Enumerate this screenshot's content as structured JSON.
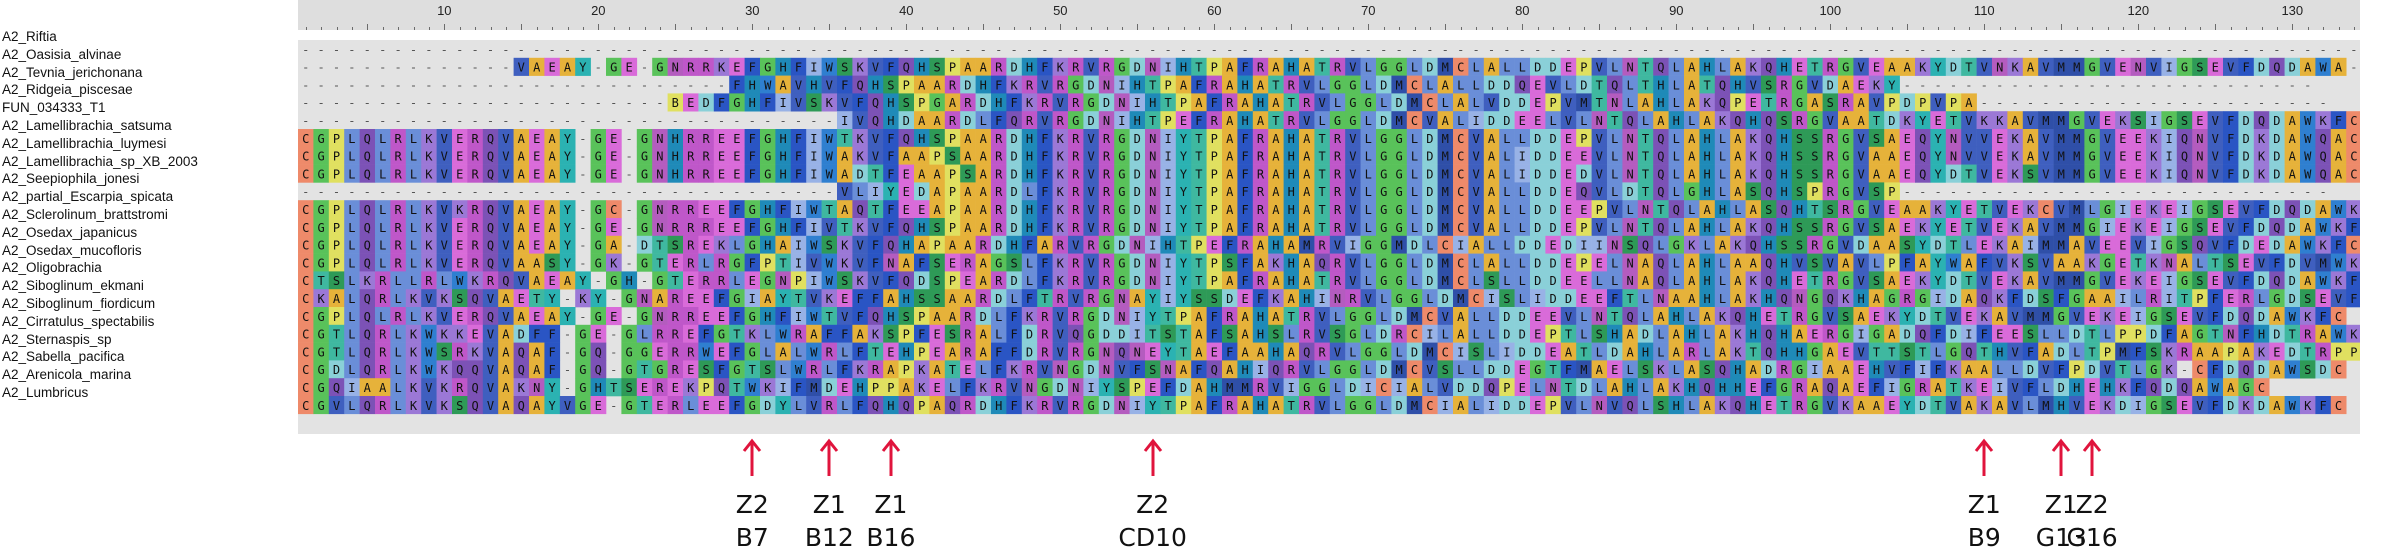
{
  "ruler": {
    "ticks": [
      10,
      20,
      30,
      40,
      50,
      60,
      70,
      80,
      90,
      100,
      110,
      120,
      130
    ]
  },
  "sequences": [
    {
      "name": "A2_Riftia",
      "seq": "--------------------------------------------------------------------------------------------------------------------------------------------"
    },
    {
      "name": "A2_Oasisia_alvinae",
      "seq": "--------------VAEAY-GE-GNRRKEFGHFIWSKVFQHSPAARDHFKRVRGDNIHTPAFRAHATRVLGGLDMCLALLDDEPVLNTQLAHLAKQHETRGVEAAKYDTVNKAVMMGVENVIGSEVFDQDAWA-"
    },
    {
      "name": "A2_Tevnia_jerichonana",
      "seq": "----------------------------FHWAVHVFQHSPAARDHFKRVRGDNIHTPAFRAHATRVLGGLDMCLALLDDQEVLDTQLTHLATQHVSRGVDAEKY---------------------------"
    },
    {
      "name": "A2_Ridgeia_piscesae",
      "seq": "------------------------BEDFGHFIVSKVFQHSPGARDHFKRVRGDNIHTPAFRAHATRVLGGLDMCLALVDDEPVMTNLAHLAKQPETRGASRAVPDPVPA-----------------------"
    },
    {
      "name": "FUN_034333_T1",
      "seq": "-----------------------------------IVQHDAARDLFQRVRGDNIHTPEFRAHATRVLGGLDMCVALIDDEELVLNTQLAHLAKQHQSRGVAATDKYETVKKAVMMGVEKSIGSEVFDQDAWKFC"
    },
    {
      "name": "A2_Lamellibrachia_satsuma",
      "seq": "CGPLQLRLKVERQVAEAY-GE-GNHRREEFGHFIWTKVFQHSPAARDHFKRVRGDNIYTPAFRAHATRVLGGLDMCVALLDDEPVLNTQLAHLAKQHSSRGVSAEQYNVVEKAVMMGVEEKIQNVFDKDAWQAC"
    },
    {
      "name": "A2_Lamellibrachia_luymesi",
      "seq": "CGPLQLRLKVERQVAEAY-GE-GNHRREEFGHFIWAKVFAAPSAARDHFKRVRGDNIYTPAFRAHATRVLGGLDMCVALIDDEEVLNTQLAHLAKQHSSRGVAAEQYNVVEKAVMMGVEEKIQNVFDKDAWQAC"
    },
    {
      "name": "A2_Lamellibrachia_sp_XB_2003",
      "seq": "CGPLQLRLKVERQVAEAY-GE-GNHRREEFGHFIWADTFEAAPSARDHFKRVRGDNIYTPAFRAHATRVLGGLDMCVALIDDEDVLNTQLAHLAKQHSSRGVAAEQYDTVEKSVMMGVEEKIQNVFDKDAWQAC"
    },
    {
      "name": "A2_Seepiophila_jonesi",
      "seq": "-----------------------------------VLIYEDAPAARDLFKRVRGDNIYTPAFRAHATRVLGGLDMCVALLDDEQVLDTQLGHLASQHSPRGVSP----------------------------"
    },
    {
      "name": "A2_partial_Escarpia_spicata",
      "seq": "CGPLQLRLKVKRQVAEAY-GC-GNRREEFGHFIWTAQTFEEAPAARDHFKRVRGDNIYTPAFRAHATRVLGGLDMCVALLDDEEPVLNTQLAHLASQHTSRGVEAAKYETVEKCVMLGIEKEIGSEVFDQDAWKFC"
    },
    {
      "name": "A2_Sclerolinum_brattstromi",
      "seq": "CGPLQLRLKVERQVAEAY-GE-GNRRREEFGHFIVTKVFQHSPAARDHFKRVRGDNIYTPAFRAHATRVLGGLDMCVALLDDEPVLNTQLAHLAKQHSSRGVSAEKYETVEKAVMMGIEKEIGSEVFDQDAWKFC"
    },
    {
      "name": "A2_Osedax_japanicus",
      "seq": "CGPLQLRLKVERQVAEAY-GA-DTSREKLGHAIWSKVFQHAPAARDHFARVRGDNIHTPEFRAHAMRVIGGMDLCIALLDDEDIINSQLGKLAKQHSSRGVDAASYDTLEKAIMMAVEEVIGSQVFDEDAWKFC"
    },
    {
      "name": "A2_Osedax_mucofloris",
      "seq": "CGPLQLRLKVERQVAASY-GK-GTERLRGFPTIVWKVFNAFSERAGSLFKRVRGDNIYTPSFAKHAQRVLGGLDMCLALLDDEPELNAQLAHLAAQHVSVAVLPFAYWAFVKSVAAKGETKNALTSEVFDVMWKQS"
    },
    {
      "name": "A2_Oligobrachia",
      "seq": "CTSLKRLLRLWKRQVAEAY-GH-GTERRLEGNPIWSKVFQDSPEARDLFKRVRGDNIYTPAFRAHATRVLGGLDMCLSLLDDEELLNAQLAHLAKQHETRGVSAEKYDTVEKAVMMGVEKEIGSEVFDQDAWKFC"
    },
    {
      "name": "A2_Siboglinum_ekmani",
      "seq": "CKALQRLKVKSQVAETY-KY-GNAREEFGIAYTVKEFFAHSSAARDLFTRVRGNAYIYSSDEFKAHINRVLGGLDMCISLIDDEEFTLNAAHLAKHQNGQKHAGRGIDAQKFDSFGAAILRITPFERLGDSEVFDKDAWSGC"
    },
    {
      "name": "A2_Siboglinum_fiordicum",
      "seq": "CGPLQLRLKVERQVAEAY-GE-GNRREEFGHFIWTVFQHSPAARDLFKRVRGDNIYTPAFRAHATRVLGGLDMCVALLDDEEVLNTQLAHLAKQHETRGVSAEKYDTVEKAVMMGVEKEIGSEVFDQDAWKFC"
    },
    {
      "name": "A2_Cirratulus_spectabilis",
      "seq": "CGTLQRLKWKKEVADFF-GE-GLRREFGTKLWRAFFAKSPFESRALFDRVQGDDITSTAFSAHSLRVSGLDRCILALLDDEPTLSHADLAHLAKHQHAERGIGADQFDIFEESLLDTLPPDFAGTNFHDTRAWKSC"
    },
    {
      "name": "A2_Sternaspis_sp",
      "seq": "CGTLQRLKWSRKVAQAF-GQ-GGERRWEFGLALWRLFTEHPEARAFFDRVRGNQNEYTAEFAAHAQRVLGGLDMCISLIDDEATLDAHLARLAKTQHHGAEVTTSTLGQTHVFADLTPMFSKRAAPAKEDTRPPLEHC"
    },
    {
      "name": "A2_Sabella_pacifica",
      "seq": "CGDLQRLKWKQQVAQAF-GQ-GTGRESFGTSLWRLFKRAPKATELFKRVNGDNVFSNAFQAHIQRVLGGLDMCVSLLDDEGTFMAELSKLASQHADRGIAAEHVFIFKAALLDVFPDVTLGK-CFDQDAWSDC"
    },
    {
      "name": "A2_Arenicola_marina",
      "seq": "CGQIAALKVKRQVAKNY-GHTSEREKPQTWKIFMDEHPPAKELFKRVNGDNIYSPEFDAHMMRVIGGLDICIALVDDQPELNTDLAHLAKHQHHEFGRAQAEFIGRATKEIVFLDHEHKFQDQAWAGC"
    },
    {
      "name": "A2_Lumbricus",
      "seq": "CGVLQRLKVKSQVAQAYVGE-GTERLEEFGDYLVRLFQHQPAQRDHFKRVRGDNIYTPAFRAHATRVLGGLDMCIALIDDEPVLNVQLSHLAKQHETRGVKAAEYDTVAKAVLMHVEKDIGSEVFDKDAWKFC"
    }
  ],
  "annotations": [
    {
      "col": 30,
      "line1": "Z2",
      "line2": "B7"
    },
    {
      "col": 35,
      "line1": "Z1",
      "line2": "B12"
    },
    {
      "col": 39,
      "line1": "Z1",
      "line2": "B16"
    },
    {
      "col": 56,
      "line1": "Z2",
      "line2": "CD10"
    },
    {
      "col": 110,
      "line1": "Z1",
      "line2": "B9"
    },
    {
      "col": 115,
      "line1": "Z1",
      "line2": "G13"
    },
    {
      "col": 117,
      "line1": "Z2",
      "line2": "G16"
    }
  ],
  "colors": {
    "A": "#e6b23a",
    "G": "#59c25a",
    "V": "#3f5fbf",
    "L": "#6a8ed8",
    "I": "#98b2e6",
    "M": "#2f4fa8",
    "F": "#2a55c4",
    "W": "#2f7fd0",
    "Y": "#2bb2b2",
    "C": "#ee8a6a",
    "P": "#e0e060",
    "S": "#2e9a57",
    "T": "#3fb8a0",
    "N": "#b45cbf",
    "Q": "#7c52b6",
    "D": "#8ad0d8",
    "E": "#d96bd9",
    "K": "#9b78d6",
    "R": "#bf57c9",
    "H": "#1f8ab8",
    "B": "#e0e060",
    "-": "#e3e3e3",
    "arrow": "#e0143c"
  }
}
